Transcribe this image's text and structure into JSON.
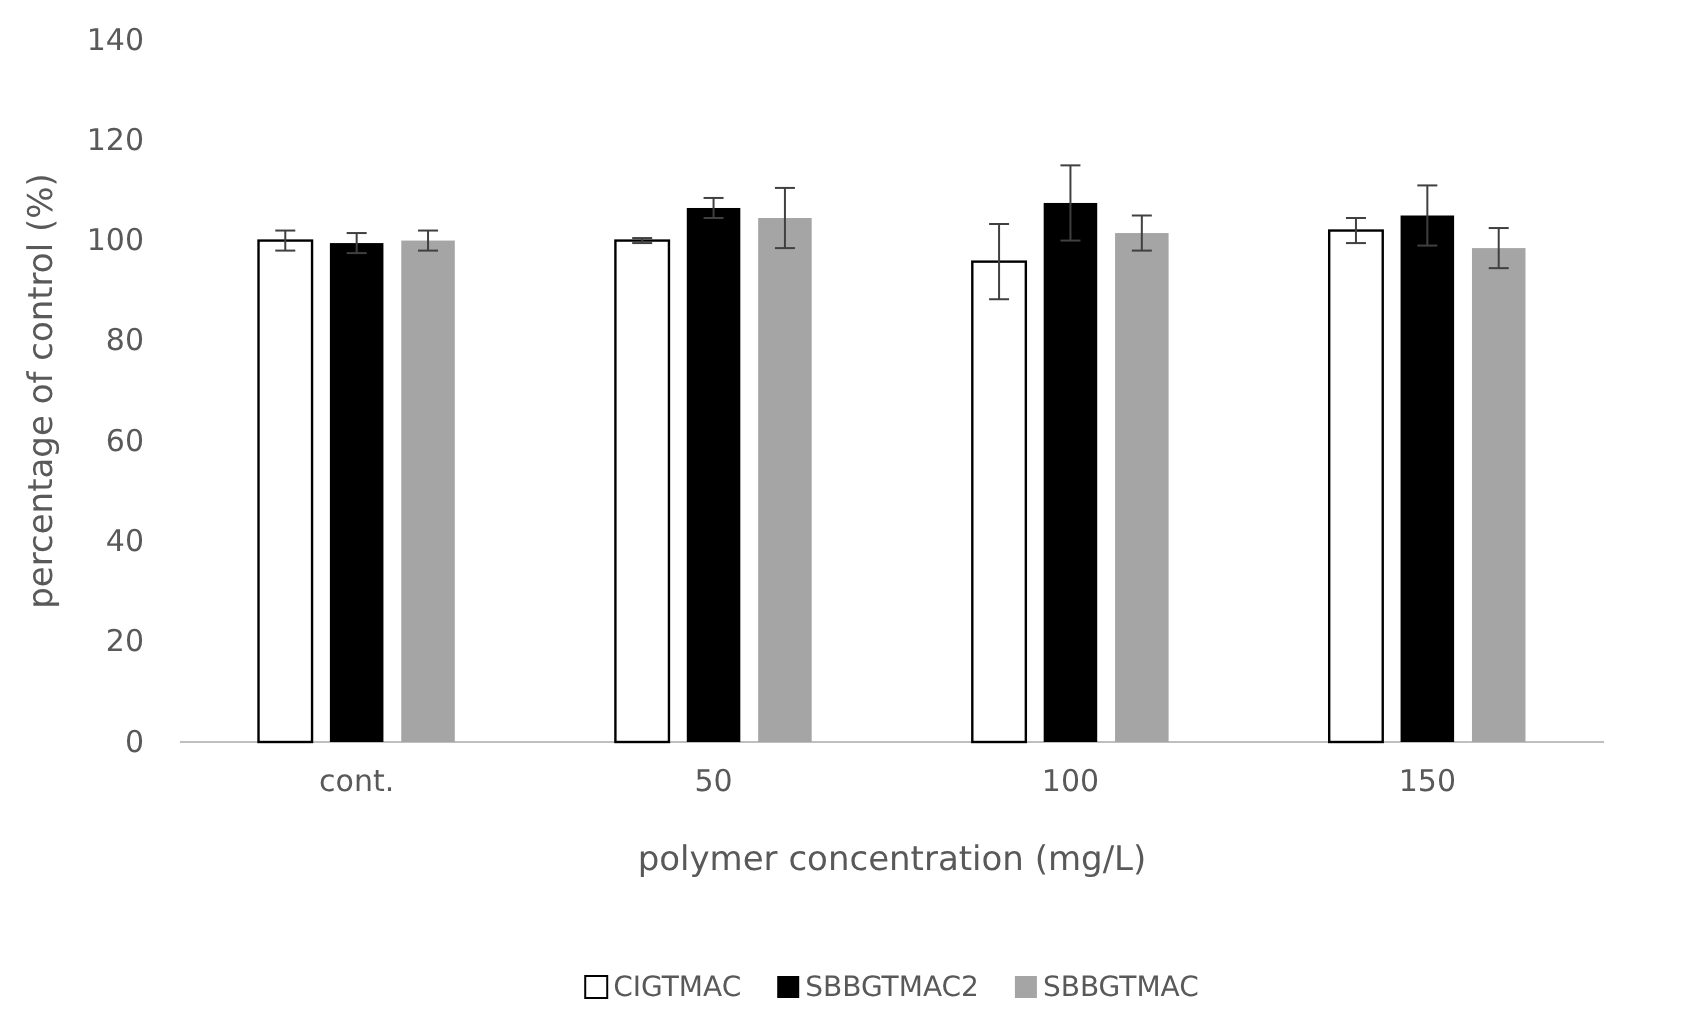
{
  "chart_data": {
    "type": "bar",
    "xlabel": "polymer concentration (mg/L)",
    "ylabel": "percentage of control (%)",
    "categories": [
      "cont.",
      "50",
      "100",
      "150"
    ],
    "series": [
      {
        "name": "CIGTMAC",
        "color": "#ffffff",
        "values": [
          100,
          100,
          95.8,
          102
        ],
        "errors": [
          2,
          0.5,
          7.5,
          2.5
        ]
      },
      {
        "name": "SBBGTMAC2",
        "color": "#000000",
        "values": [
          99.5,
          106.5,
          107.5,
          105
        ],
        "errors": [
          2,
          2,
          7.5,
          6
        ]
      },
      {
        "name": "SBBGTMAC",
        "color": "#a5a5a5",
        "values": [
          100,
          104.5,
          101.5,
          98.5
        ],
        "errors": [
          2,
          6,
          3.5,
          4
        ]
      }
    ],
    "ylim": [
      0,
      140
    ],
    "yticks": [
      0,
      20,
      40,
      60,
      80,
      100,
      120,
      140
    ],
    "grid": false,
    "legend": "bottom"
  }
}
